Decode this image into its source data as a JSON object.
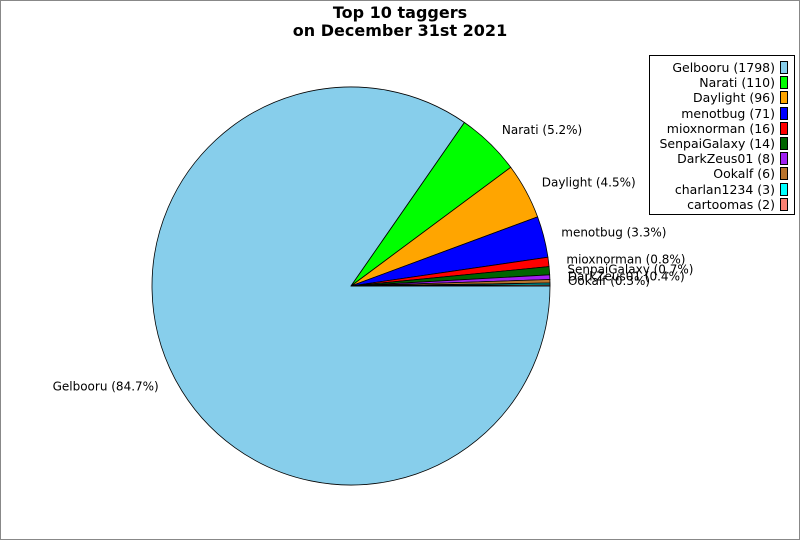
{
  "chart_data": {
    "type": "pie",
    "title": [
      "Top 10 taggers",
      "on December 31st 2021"
    ],
    "legend_position": "top-right",
    "slices": [
      {
        "name": "Gelbooru",
        "value": 1798,
        "percent_label": "84.7%",
        "color": "#87ceeb"
      },
      {
        "name": "Narati",
        "value": 110,
        "percent_label": "5.2%",
        "color": "#00ff00"
      },
      {
        "name": "Daylight",
        "value": 96,
        "percent_label": "4.5%",
        "color": "#ffa500"
      },
      {
        "name": "menotbug",
        "value": 71,
        "percent_label": "3.3%",
        "color": "#0000ff"
      },
      {
        "name": "mioxnorman",
        "value": 16,
        "percent_label": "0.8%",
        "color": "#ff0000"
      },
      {
        "name": "SenpaiGalaxy",
        "value": 14,
        "percent_label": "0.7%",
        "color": "#006400"
      },
      {
        "name": "DarkZeus01",
        "value": 8,
        "percent_label": "0.4%",
        "color": "#a020f0"
      },
      {
        "name": "Ookalf",
        "value": 6,
        "percent_label": "0.3%",
        "color": "#b8732d"
      },
      {
        "name": "charlan1234",
        "value": 3,
        "percent_label": "",
        "color": "#00ffff"
      },
      {
        "name": "cartoomas",
        "value": 2,
        "percent_label": "",
        "color": "#fa8072"
      }
    ]
  }
}
